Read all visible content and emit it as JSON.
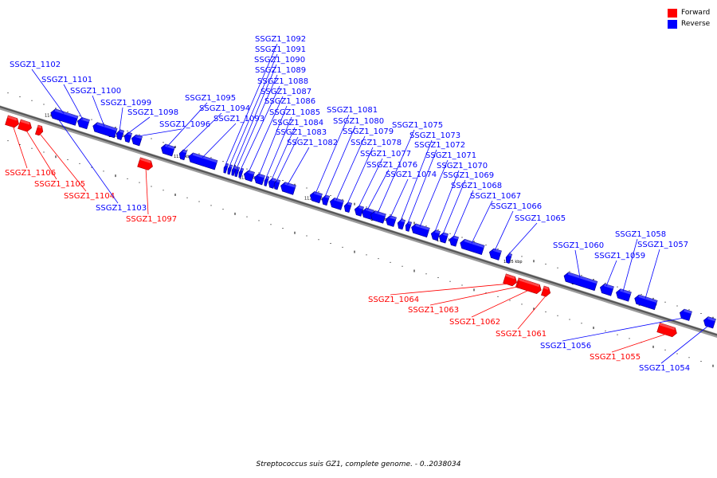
{
  "legend": [
    {
      "label": "Forward",
      "color": "#ff0000"
    },
    {
      "label": "Reverse",
      "color": "#0000ff"
    }
  ],
  "colors": {
    "forward": "#ff0000",
    "reverse": "#0000ff",
    "backbone": "#555555"
  },
  "caption": "Streptococcus suis GZ1, complete genome. - 0..2038034",
  "scale_labels": [
    "1140 kbp",
    "1135 kbp",
    "1130 kbp",
    "1125 kbp",
    "1120 kbp",
    "1115 kbp",
    "1110 kbp",
    "1105 kbp",
    "1100 kbp",
    "1095 kbp"
  ],
  "genes": [
    {
      "id": "SSGZ1_1106",
      "strand": "forward"
    },
    {
      "id": "SSGZ1_1105",
      "strand": "forward"
    },
    {
      "id": "SSGZ1_1104",
      "strand": "forward"
    },
    {
      "id": "SSGZ1_1103",
      "strand": "reverse"
    },
    {
      "id": "SSGZ1_1102",
      "strand": "reverse"
    },
    {
      "id": "SSGZ1_1101",
      "strand": "reverse"
    },
    {
      "id": "SSGZ1_1100",
      "strand": "reverse"
    },
    {
      "id": "SSGZ1_1099",
      "strand": "reverse"
    },
    {
      "id": "SSGZ1_1098",
      "strand": "reverse"
    },
    {
      "id": "SSGZ1_1097",
      "strand": "forward"
    },
    {
      "id": "SSGZ1_1096",
      "strand": "reverse"
    },
    {
      "id": "SSGZ1_1095",
      "strand": "reverse"
    },
    {
      "id": "SSGZ1_1094",
      "strand": "reverse"
    },
    {
      "id": "SSGZ1_1093",
      "strand": "reverse"
    },
    {
      "id": "SSGZ1_1092",
      "strand": "reverse"
    },
    {
      "id": "SSGZ1_1091",
      "strand": "reverse"
    },
    {
      "id": "SSGZ1_1090",
      "strand": "reverse"
    },
    {
      "id": "SSGZ1_1089",
      "strand": "reverse"
    },
    {
      "id": "SSGZ1_1088",
      "strand": "reverse"
    },
    {
      "id": "SSGZ1_1087",
      "strand": "reverse"
    },
    {
      "id": "SSGZ1_1086",
      "strand": "reverse"
    },
    {
      "id": "SSGZ1_1085",
      "strand": "reverse"
    },
    {
      "id": "SSGZ1_1084",
      "strand": "reverse"
    },
    {
      "id": "SSGZ1_1083",
      "strand": "reverse"
    },
    {
      "id": "SSGZ1_1082",
      "strand": "reverse"
    },
    {
      "id": "SSGZ1_1081",
      "strand": "reverse"
    },
    {
      "id": "SSGZ1_1080",
      "strand": "reverse"
    },
    {
      "id": "SSGZ1_1079",
      "strand": "reverse"
    },
    {
      "id": "SSGZ1_1078",
      "strand": "reverse"
    },
    {
      "id": "SSGZ1_1077",
      "strand": "reverse"
    },
    {
      "id": "SSGZ1_1076",
      "strand": "reverse"
    },
    {
      "id": "SSGZ1_1075",
      "strand": "reverse"
    },
    {
      "id": "SSGZ1_1074",
      "strand": "reverse"
    },
    {
      "id": "SSGZ1_1073",
      "strand": "reverse"
    },
    {
      "id": "SSGZ1_1072",
      "strand": "reverse"
    },
    {
      "id": "SSGZ1_1071",
      "strand": "reverse"
    },
    {
      "id": "SSGZ1_1070",
      "strand": "reverse"
    },
    {
      "id": "SSGZ1_1069",
      "strand": "reverse"
    },
    {
      "id": "SSGZ1_1068",
      "strand": "reverse"
    },
    {
      "id": "SSGZ1_1067",
      "strand": "reverse"
    },
    {
      "id": "SSGZ1_1066",
      "strand": "reverse"
    },
    {
      "id": "SSGZ1_1065",
      "strand": "reverse"
    },
    {
      "id": "SSGZ1_1064",
      "strand": "forward"
    },
    {
      "id": "SSGZ1_1063",
      "strand": "forward"
    },
    {
      "id": "SSGZ1_1062",
      "strand": "forward"
    },
    {
      "id": "SSGZ1_1061",
      "strand": "forward"
    },
    {
      "id": "SSGZ1_1060",
      "strand": "reverse"
    },
    {
      "id": "SSGZ1_1059",
      "strand": "reverse"
    },
    {
      "id": "SSGZ1_1058",
      "strand": "reverse"
    },
    {
      "id": "SSGZ1_1057",
      "strand": "reverse"
    },
    {
      "id": "SSGZ1_1056",
      "strand": "reverse"
    },
    {
      "id": "SSGZ1_1055",
      "strand": "forward"
    },
    {
      "id": "SSGZ1_1054",
      "strand": "reverse"
    }
  ]
}
